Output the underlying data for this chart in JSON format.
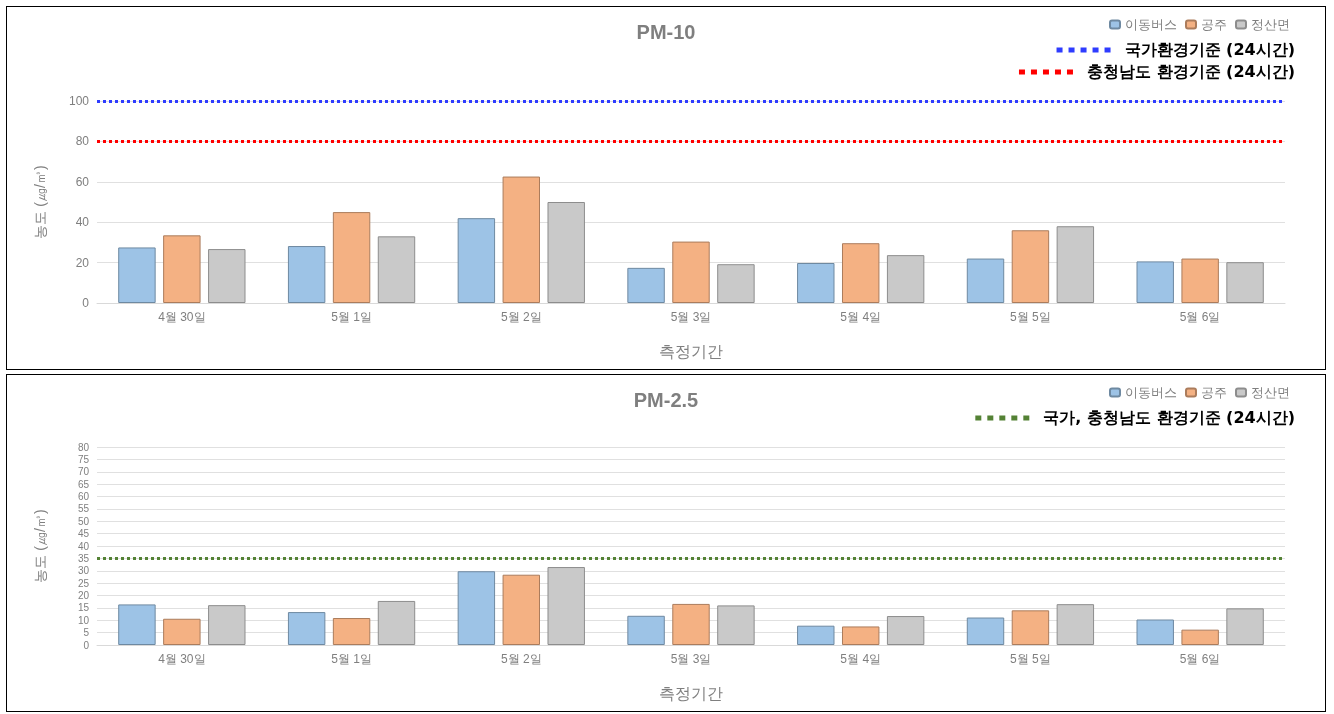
{
  "chart_data": [
    {
      "type": "bar",
      "title": "PM-10",
      "xlabel": "측정기간",
      "ylabel": "농도 (㎍/㎥)",
      "categories": [
        "4월 30일",
        "5월 1일",
        "5월 2일",
        "5월 3일",
        "5월 4일",
        "5월 5일",
        "5월 6일"
      ],
      "series": [
        {
          "name": "이동버스",
          "color": "#9dc3e6",
          "values": [
            27.5,
            28.2,
            42,
            17.4,
            19.8,
            22,
            20.6
          ]
        },
        {
          "name": "공주",
          "color": "#f4b183",
          "values": [
            33.5,
            45,
            62.6,
            30.4,
            29.6,
            36,
            22
          ]
        },
        {
          "name": "정산면",
          "color": "#c9c9c9",
          "values": [
            26.7,
            33,
            50,
            19.2,
            23.7,
            38,
            20.2
          ]
        }
      ],
      "ylim": [
        0,
        100
      ],
      "yticks": [
        0,
        20,
        40,
        60,
        80,
        100
      ],
      "grid": "y",
      "legend": "top right",
      "ref_lines": [
        {
          "axis": "y",
          "value": 100,
          "label": "국가환경기준 (24시간)",
          "color": "#2e3cff",
          "line_style": "dotted"
        },
        {
          "axis": "y",
          "value": 80,
          "label": "충청남도 환경기준 (24시간)",
          "color": "#ff0000",
          "line_style": "dotted"
        }
      ]
    },
    {
      "type": "bar",
      "title": "PM-2.5",
      "xlabel": "측정기간",
      "ylabel": "농도 (㎍/㎥)",
      "categories": [
        "4월 30일",
        "5월 1일",
        "5월 2일",
        "5월 3일",
        "5월 4일",
        "5월 5일",
        "5월 6일"
      ],
      "series": [
        {
          "name": "이동버스",
          "color": "#9dc3e6",
          "values": [
            16.4,
            13.3,
            29.8,
            11.8,
            7.8,
            11.1,
            10.3
          ]
        },
        {
          "name": "공주",
          "color": "#f4b183",
          "values": [
            10.6,
            10.9,
            28.4,
            16.6,
            7.5,
            14,
            6.2
          ]
        },
        {
          "name": "정산면",
          "color": "#c9c9c9",
          "values": [
            16.1,
            17.8,
            31.5,
            16,
            11.7,
            16.5,
            14.8
          ]
        }
      ],
      "ylim": [
        0,
        80
      ],
      "yticks": [
        0,
        5,
        10,
        15,
        20,
        25,
        30,
        35,
        40,
        45,
        50,
        55,
        60,
        65,
        70,
        75,
        80
      ],
      "grid": "y",
      "legend": "top right",
      "ref_lines": [
        {
          "axis": "y",
          "value": 35,
          "label": "국가, 충청남도 환경기준 (24시간)",
          "color": "#548235",
          "line_style": "dotted"
        }
      ]
    }
  ]
}
